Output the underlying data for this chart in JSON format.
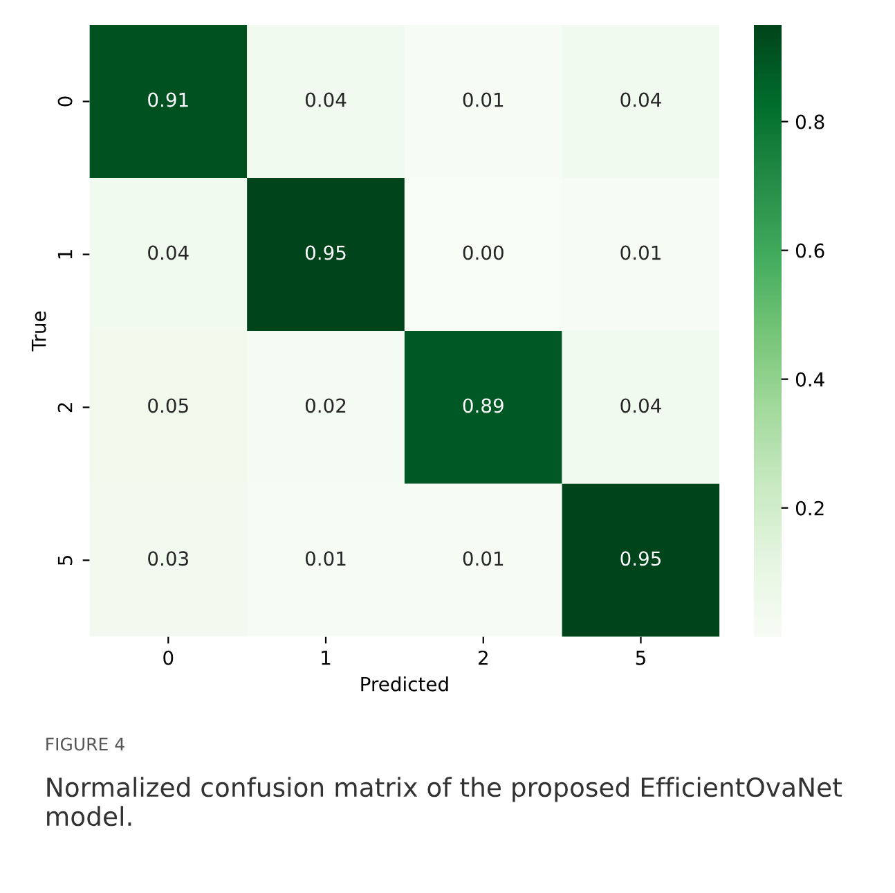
{
  "chart_data": {
    "type": "heatmap",
    "categories": [
      "0",
      "1",
      "2",
      "5"
    ],
    "y_categories": [
      "0",
      "1",
      "2",
      "5"
    ],
    "cells": [
      [
        0.91,
        0.04,
        0.01,
        0.04
      ],
      [
        0.04,
        0.95,
        0.0,
        0.01
      ],
      [
        0.05,
        0.02,
        0.89,
        0.04
      ],
      [
        0.03,
        0.01,
        0.01,
        0.95
      ]
    ],
    "data_labels": true,
    "cell_labels": [
      [
        "0.91",
        "0.04",
        "0.01",
        "0.04"
      ],
      [
        "0.04",
        "0.95",
        "0.00",
        "0.01"
      ],
      [
        "0.05",
        "0.02",
        "0.89",
        "0.04"
      ],
      [
        "0.03",
        "0.01",
        "0.01",
        "0.95"
      ]
    ],
    "clim": [
      0,
      0.95
    ],
    "cticks": [
      0.2,
      0.4,
      0.6,
      0.8
    ],
    "xlabel": "Predicted",
    "ylabel": "True",
    "annotations": [
      "FIGURE 4",
      "Normalized confusion matrix of the proposed EfficientOvaNet model."
    ]
  }
}
